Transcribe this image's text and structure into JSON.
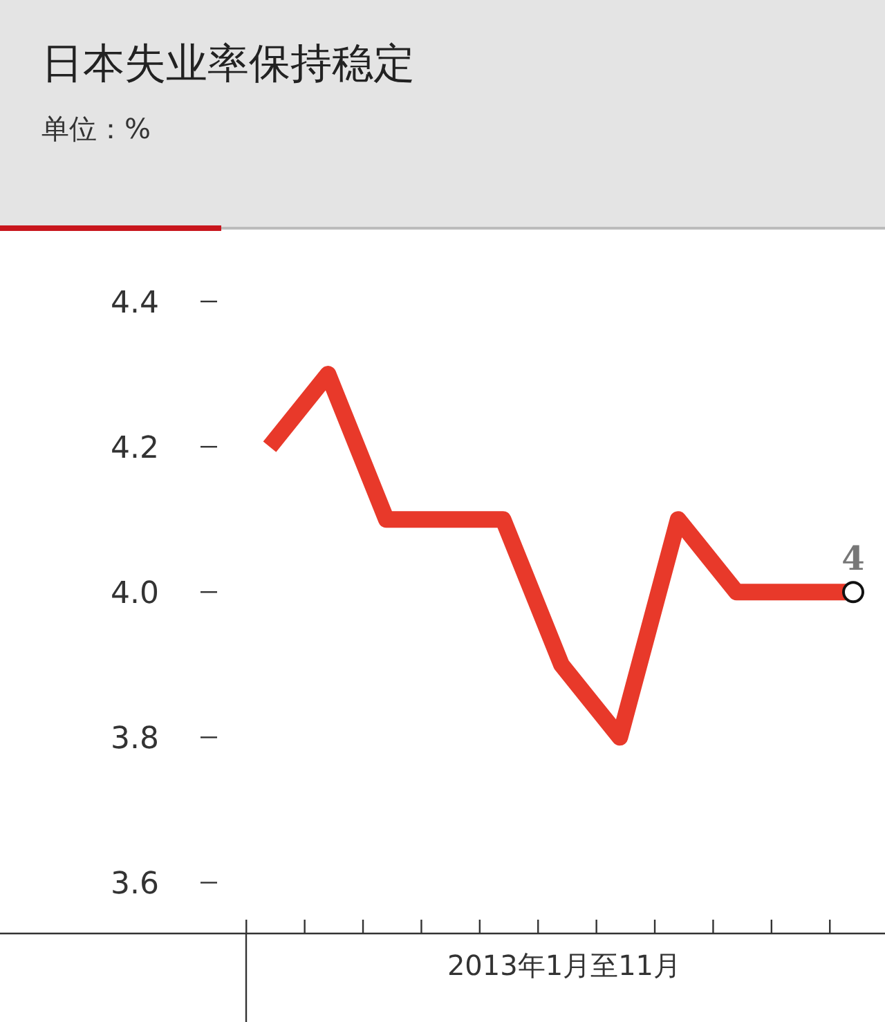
{
  "chart_data": {
    "type": "line",
    "title": "日本失业率保持稳定",
    "subtitle": "单位：%",
    "xlabel": "2013年1月至11月",
    "categories": [
      null,
      null,
      null,
      null,
      null,
      null,
      null,
      null,
      null,
      null,
      null
    ],
    "values": [
      4.2,
      4.3,
      4.1,
      4.1,
      4.1,
      3.9,
      3.8,
      4.1,
      4.0,
      4.0,
      4.0
    ],
    "value_labels": [
      null,
      null,
      null,
      null,
      null,
      null,
      null,
      null,
      null,
      null,
      "4"
    ],
    "color": "#e8392a",
    "ylim": [
      3.53,
      4.4
    ],
    "yticks": [
      3.6,
      3.8,
      {
        "value": 4.0,
        "label": "4.0"
      },
      4.2,
      4.4
    ]
  }
}
